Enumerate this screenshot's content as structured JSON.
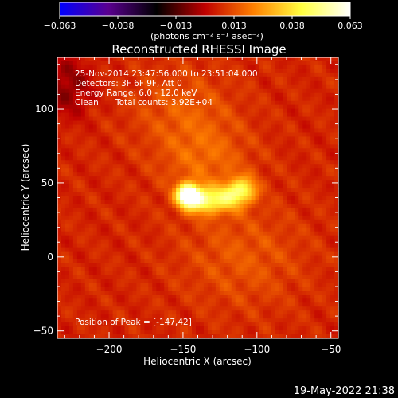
{
  "colorbar": {
    "ticks": [
      "-0.063",
      "-0.038",
      "-0.013",
      "0.013",
      "0.038",
      "0.063"
    ],
    "unit_label": "(photons cm⁻² s⁻¹ asec⁻²)"
  },
  "title": "Reconstructed RHESSI Image",
  "info": {
    "time_range": "25-Nov-2014 23:47:56.000 to 23:51:04.000",
    "detectors": "Detectors: 3F 6F 9F, Att 0",
    "energy": "Energy Range: 6.0 - 12.0 keV",
    "method": "Clean",
    "counts": "Total counts: 3.92E+04"
  },
  "peak_label": "Position of Peak = [-147,42]",
  "footer_date": "19-May-2022 21:38",
  "chart_data": {
    "type": "heatmap",
    "title": "Reconstructed RHESSI Image",
    "xlabel": "Heliocentric X (arcsec)",
    "ylabel": "Heliocentric Y (arcsec)",
    "xlim": [
      -235,
      -45
    ],
    "ylim": [
      -55,
      135
    ],
    "xticks": [
      {
        "v": -200,
        "label": "−200"
      },
      {
        "v": -150,
        "label": "−150"
      },
      {
        "v": -100,
        "label": "−100"
      },
      {
        "v": -50,
        "label": "−50"
      }
    ],
    "yticks": [
      {
        "v": -50,
        "label": "−50"
      },
      {
        "v": 0,
        "label": "0"
      },
      {
        "v": 50,
        "label": "50"
      },
      {
        "v": 100,
        "label": "100"
      }
    ],
    "value_range": [
      -0.063,
      0.063
    ],
    "colormap": [
      "#0000ff",
      "#5a0090",
      "#000000",
      "#c00000",
      "#ff8000",
      "#ffff40",
      "#ffffff"
    ],
    "peak": {
      "x": -147,
      "y": 42
    },
    "sources": [
      {
        "x": -147,
        "y": 42,
        "amp": 0.063,
        "sx": 5,
        "sy": 5
      },
      {
        "x": -140,
        "y": 39,
        "amp": 0.028,
        "sx": 8,
        "sy": 6
      },
      {
        "x": -128,
        "y": 38,
        "amp": 0.022,
        "sx": 10,
        "sy": 6
      },
      {
        "x": -116,
        "y": 43,
        "amp": 0.024,
        "sx": 7,
        "sy": 6
      },
      {
        "x": -108,
        "y": 46,
        "amp": 0.021,
        "sx": 6,
        "sy": 6
      },
      {
        "x": -135,
        "y": 65,
        "amp": 0.01,
        "sx": 22,
        "sy": 18
      },
      {
        "x": -150,
        "y": 100,
        "amp": 0.008,
        "sx": 25,
        "sy": 20
      },
      {
        "x": -110,
        "y": 0,
        "amp": 0.008,
        "sx": 30,
        "sy": 25
      }
    ]
  }
}
